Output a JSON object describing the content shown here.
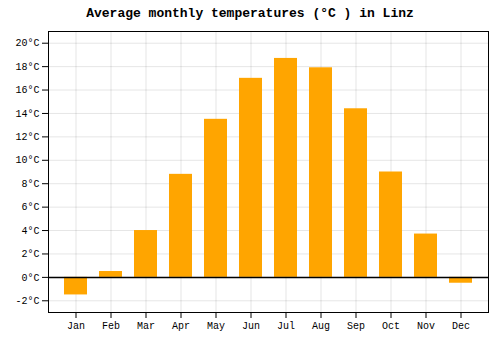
{
  "chart_data": {
    "type": "bar",
    "title": "Average monthly temperatures (°C ) in Linz",
    "categories": [
      "Jan",
      "Feb",
      "Mar",
      "Apr",
      "May",
      "Jun",
      "Jul",
      "Aug",
      "Sep",
      "Oct",
      "Nov",
      "Dec"
    ],
    "values": [
      -1.5,
      0.5,
      4.0,
      8.8,
      13.5,
      17.0,
      18.7,
      17.9,
      14.4,
      9.0,
      3.7,
      -0.5
    ],
    "color": "#FFA500",
    "ylim": [
      -3,
      21
    ],
    "yticks": [
      {
        "value": -2,
        "label": "-2°C"
      },
      {
        "value": 0,
        "label": "0°C"
      },
      {
        "value": 2,
        "label": "2°C"
      },
      {
        "value": 4,
        "label": "4°C"
      },
      {
        "value": 6,
        "label": "6°C"
      },
      {
        "value": 8,
        "label": "8°C"
      },
      {
        "value": 10,
        "label": "10°C"
      },
      {
        "value": 12,
        "label": "12°C"
      },
      {
        "value": 14,
        "label": "14°C"
      },
      {
        "value": 16,
        "label": "16°C"
      },
      {
        "value": 18,
        "label": "18°C"
      },
      {
        "value": 20,
        "label": "20°C"
      }
    ],
    "grid": true
  }
}
